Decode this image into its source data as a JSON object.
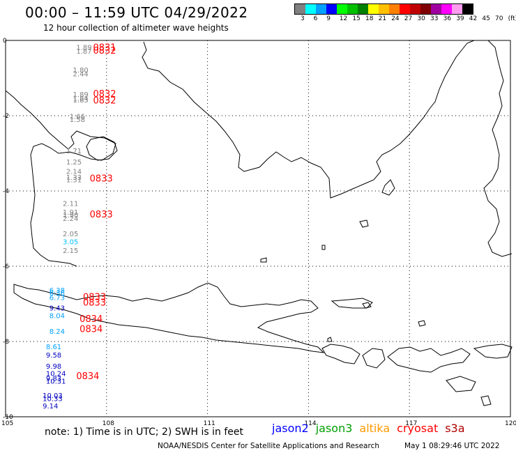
{
  "header": {
    "title": "00:00 – 11:59 UTC 04/29/2022",
    "subtitle": "12 hour collection of altimeter wave heights"
  },
  "legend": {
    "colors": [
      "#808080",
      "#00ffff",
      "#00a0ff",
      "#0000ff",
      "#00ff00",
      "#00c000",
      "#008000",
      "#ffff00",
      "#ffc000",
      "#ff8000",
      "#ff0000",
      "#c00000",
      "#800000",
      "#a000a0",
      "#ff00ff",
      "#ff9cf0",
      "#000000"
    ],
    "labels": [
      "3",
      "6",
      "9",
      "12",
      "15",
      "18",
      "21",
      "24",
      "27",
      "30",
      "33",
      "36",
      "39",
      "42",
      "45",
      "70",
      "(ft)"
    ]
  },
  "axes": {
    "y_labels": [
      "0",
      "-2",
      "-4",
      "-6",
      "-8",
      "-10"
    ],
    "x_labels": [
      "105",
      "108",
      "111",
      "114",
      "117",
      "120"
    ]
  },
  "footer": {
    "note": "note:  1) Time is in UTC;  2) SWH is in feet",
    "series": [
      {
        "name": "jason2",
        "color": "#0000ff"
      },
      {
        "name": "jason3",
        "color": "#00a000"
      },
      {
        "name": "altika",
        "color": "#ff9a00"
      },
      {
        "name": "cryosat",
        "color": "#ff0000"
      },
      {
        "name": "s3a",
        "color": "#b00000"
      }
    ],
    "credit": "NOAA/NESDIS Center for Satellite Applications and Research",
    "timestamp": "May  1 08:29:46 UTC 2022"
  },
  "chart_data": {
    "type": "scatter",
    "xlim": [
      105,
      120
    ],
    "ylim": [
      -10,
      0
    ],
    "grid": true,
    "wave_heights": [
      {
        "lon": 107.1,
        "lat": -0.25,
        "value": "1.89",
        "color": "#808080"
      },
      {
        "lon": 107.1,
        "lat": -0.35,
        "value": "1.87",
        "color": "#808080"
      },
      {
        "lon": 107.0,
        "lat": -0.85,
        "value": "1.80",
        "color": "#808080"
      },
      {
        "lon": 107.0,
        "lat": -0.95,
        "value": "2.44",
        "color": "#808080"
      },
      {
        "lon": 107.0,
        "lat": -1.5,
        "value": "1.89",
        "color": "#808080"
      },
      {
        "lon": 107.0,
        "lat": -1.6,
        "value": "1.84",
        "color": "#808080"
      },
      {
        "lon": 107.0,
        "lat": -1.65,
        "value": "1.83",
        "color": "#808080"
      },
      {
        "lon": 106.9,
        "lat": -2.08,
        "value": "1.66",
        "color": "#808080"
      },
      {
        "lon": 106.9,
        "lat": -2.17,
        "value": "1.58",
        "color": "#808080"
      },
      {
        "lon": 106.8,
        "lat": -3.0,
        "value": "1.71",
        "color": "#808080"
      },
      {
        "lon": 106.8,
        "lat": -3.3,
        "value": "1.25",
        "color": "#808080"
      },
      {
        "lon": 106.8,
        "lat": -3.55,
        "value": "2.14",
        "color": "#808080"
      },
      {
        "lon": 106.8,
        "lat": -3.7,
        "value": "1.33",
        "color": "#808080"
      },
      {
        "lon": 106.8,
        "lat": -3.77,
        "value": "1.31",
        "color": "#808080"
      },
      {
        "lon": 106.7,
        "lat": -4.4,
        "value": "2.11",
        "color": "#808080"
      },
      {
        "lon": 106.7,
        "lat": -4.63,
        "value": "1.91",
        "color": "#808080"
      },
      {
        "lon": 106.7,
        "lat": -4.7,
        "value": "1.90",
        "color": "#808080"
      },
      {
        "lon": 106.7,
        "lat": -4.8,
        "value": "2.24",
        "color": "#808080"
      },
      {
        "lon": 106.7,
        "lat": -5.2,
        "value": "2.05",
        "color": "#808080"
      },
      {
        "lon": 106.7,
        "lat": -5.42,
        "value": "3.05",
        "color": "#00c0ff"
      },
      {
        "lon": 106.7,
        "lat": -5.65,
        "value": "2.15",
        "color": "#808080"
      },
      {
        "lon": 106.3,
        "lat": -6.7,
        "value": "6.38",
        "color": "#00a0ff"
      },
      {
        "lon": 106.3,
        "lat": -6.78,
        "value": "6.36",
        "color": "#00a0ff"
      },
      {
        "lon": 106.3,
        "lat": -6.9,
        "value": "6.73",
        "color": "#00a0ff"
      },
      {
        "lon": 106.3,
        "lat": -7.18,
        "value": "9.43",
        "color": "#0000c0"
      },
      {
        "lon": 106.3,
        "lat": -7.38,
        "value": "8.04",
        "color": "#00a0ff"
      },
      {
        "lon": 106.3,
        "lat": -7.8,
        "value": "8.24",
        "color": "#00a0ff"
      },
      {
        "lon": 106.2,
        "lat": -8.2,
        "value": "8.61",
        "color": "#00a0ff"
      },
      {
        "lon": 106.2,
        "lat": -8.43,
        "value": "9.58",
        "color": "#0000c0"
      },
      {
        "lon": 106.2,
        "lat": -8.72,
        "value": "9.98",
        "color": "#0000c0"
      },
      {
        "lon": 106.2,
        "lat": -8.92,
        "value": "10.24",
        "color": "#0000c0"
      },
      {
        "lon": 106.2,
        "lat": -9.05,
        "value": "9.83",
        "color": "#0000c0"
      },
      {
        "lon": 106.2,
        "lat": -9.12,
        "value": "10.31",
        "color": "#0000c0"
      },
      {
        "lon": 106.1,
        "lat": -9.5,
        "value": "10.03",
        "color": "#0000c0"
      },
      {
        "lon": 106.1,
        "lat": -9.58,
        "value": "10.33",
        "color": "#0000c0"
      },
      {
        "lon": 106.1,
        "lat": -9.78,
        "value": "9.14",
        "color": "#0000c0"
      }
    ],
    "times": [
      {
        "lon": 107.6,
        "lat": -0.27,
        "value": "0831",
        "color": "#ff0000"
      },
      {
        "lon": 107.6,
        "lat": -0.35,
        "value": "0832",
        "color": "#ff0000"
      },
      {
        "lon": 107.6,
        "lat": -1.5,
        "value": "0832",
        "color": "#ff0000"
      },
      {
        "lon": 107.6,
        "lat": -1.68,
        "value": "0832",
        "color": "#ff0000"
      },
      {
        "lon": 107.5,
        "lat": -3.75,
        "value": "0833",
        "color": "#ff0000"
      },
      {
        "lon": 107.5,
        "lat": -4.7,
        "value": "0833",
        "color": "#ff0000"
      },
      {
        "lon": 107.3,
        "lat": -6.9,
        "value": "0833",
        "color": "#ff0000"
      },
      {
        "lon": 107.3,
        "lat": -7.05,
        "value": "0833",
        "color": "#ff0000"
      },
      {
        "lon": 107.2,
        "lat": -7.48,
        "value": "0834",
        "color": "#ff0000"
      },
      {
        "lon": 107.2,
        "lat": -7.75,
        "value": "0834",
        "color": "#ff0000"
      },
      {
        "lon": 107.1,
        "lat": -9.0,
        "value": "0834",
        "color": "#ff0000"
      }
    ]
  }
}
